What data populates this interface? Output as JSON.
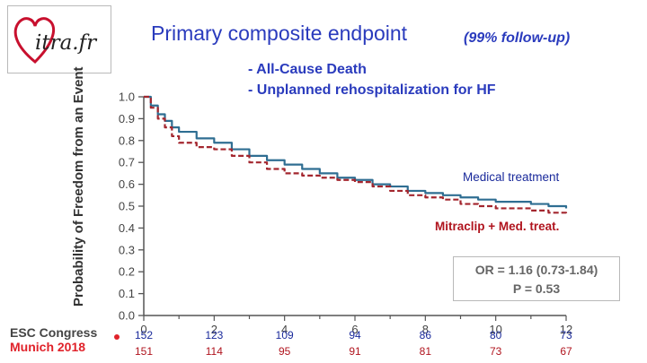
{
  "logo": {
    "text": "itra.fr"
  },
  "header": {
    "title": "Primary composite endpoint",
    "subtitle": "(99% follow-up)",
    "bullets": [
      "- All-Cause Death",
      "- Unplanned rehospitalization for HF"
    ]
  },
  "event": {
    "line1": "ESC Congress",
    "line2": "Munich 2018"
  },
  "stats": {
    "or": "OR = 1.16 (0.73-1.84)",
    "p": "P = 0.53"
  },
  "colors": {
    "medical": "#2f6e92",
    "mitraclip": "#a3262e",
    "title": "#2a3bbd"
  },
  "chart_data": {
    "type": "line",
    "title": "Primary composite endpoint",
    "ylabel": "Probability of Freedom from an Event",
    "xlabel": "",
    "xlim": [
      0,
      12
    ],
    "ylim": [
      0,
      1.0
    ],
    "xticks": [
      0,
      2,
      4,
      6,
      8,
      10,
      12
    ],
    "yticks": [
      0.0,
      0.1,
      0.2,
      0.3,
      0.4,
      0.5,
      0.6,
      0.7,
      0.8,
      0.9,
      1.0
    ],
    "ytick_labels": [
      "0.0",
      "0.1",
      "0.2",
      "0.3",
      "0.4",
      "0.5",
      "0.6",
      "0.7",
      "0.8",
      "0.9",
      "1.0"
    ],
    "series": [
      {
        "name": "Medical treatment",
        "label": "Medical  treatment",
        "style": "solid",
        "x": [
          0,
          0.2,
          0.4,
          0.6,
          0.8,
          1.0,
          1.5,
          2.0,
          2.5,
          3.0,
          3.5,
          4.0,
          4.5,
          5.0,
          5.5,
          6.0,
          6.5,
          7.0,
          7.5,
          8.0,
          8.5,
          9.0,
          9.5,
          10.0,
          10.5,
          11.0,
          11.5,
          12.0
        ],
        "y": [
          1.0,
          0.96,
          0.92,
          0.89,
          0.86,
          0.84,
          0.81,
          0.79,
          0.76,
          0.73,
          0.71,
          0.69,
          0.67,
          0.65,
          0.63,
          0.62,
          0.6,
          0.59,
          0.57,
          0.56,
          0.55,
          0.54,
          0.53,
          0.52,
          0.52,
          0.51,
          0.5,
          0.49
        ]
      },
      {
        "name": "Mitraclip + Med. treat.",
        "label": "Mitraclip + Med. treat.",
        "style": "dashed",
        "x": [
          0,
          0.2,
          0.4,
          0.6,
          0.8,
          1.0,
          1.5,
          2.0,
          2.5,
          3.0,
          3.5,
          4.0,
          4.5,
          5.0,
          5.5,
          6.0,
          6.5,
          7.0,
          7.5,
          8.0,
          8.5,
          9.0,
          9.5,
          10.0,
          10.5,
          11.0,
          11.5,
          12.0
        ],
        "y": [
          1.0,
          0.95,
          0.9,
          0.86,
          0.82,
          0.79,
          0.77,
          0.76,
          0.73,
          0.7,
          0.67,
          0.65,
          0.64,
          0.63,
          0.62,
          0.61,
          0.59,
          0.57,
          0.55,
          0.54,
          0.53,
          0.51,
          0.5,
          0.49,
          0.49,
          0.48,
          0.47,
          0.46
        ]
      }
    ],
    "at_risk": {
      "times": [
        0,
        2,
        4,
        6,
        8,
        10,
        12
      ],
      "rows": [
        {
          "name": "Medical treatment",
          "values": [
            "152",
            "123",
            "109",
            "94",
            "86",
            "80",
            "73"
          ]
        },
        {
          "name": "Mitraclip + Med. treat.",
          "values": [
            "151",
            "114",
            "95",
            "91",
            "81",
            "73",
            "67"
          ]
        }
      ]
    }
  }
}
